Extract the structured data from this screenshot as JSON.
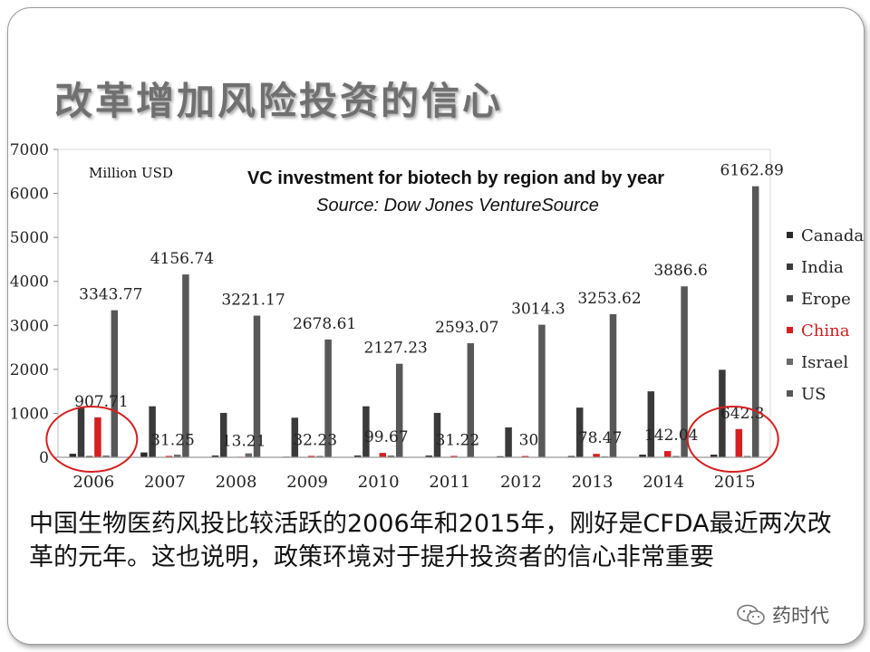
{
  "slide": {
    "title": "改革增加风险投资的信心",
    "caption": "中国生物医药风投比较活跃的2006年和2015年，刚好是CFDA最近两次改革的元年。这也说明，政策环境对于提升投资者的信心非常重要",
    "watermark": "药时代"
  },
  "chart_data": {
    "type": "bar",
    "title": "VC investment for biotech by region and by year",
    "subtitle": "Source: Dow Jones VentureSource",
    "unit_label": "Million USD",
    "ylim": [
      0,
      7000
    ],
    "yticks": [
      0,
      1000,
      2000,
      3000,
      4000,
      5000,
      6000,
      7000
    ],
    "ytick_labels": [
      "0",
      "1000",
      "2000",
      "3000",
      "4000",
      "5000",
      "6000",
      "7000"
    ],
    "categories": [
      "2006",
      "2007",
      "2008",
      "2009",
      "2010",
      "2011",
      "2012",
      "2013",
      "2014",
      "2015"
    ],
    "legend_position": "right",
    "grid": false,
    "series": [
      {
        "name": "Canada",
        "color": "#2b2b2b",
        "values": [
          80,
          110,
          40,
          15,
          40,
          40,
          25,
          30,
          60,
          60
        ]
      },
      {
        "name": "India",
        "color": "#3a3a3a",
        "values": [
          1120,
          1160,
          1010,
          900,
          1160,
          1010,
          680,
          1130,
          1500,
          1990
        ]
      },
      {
        "name": "Erope",
        "color": "#454545",
        "values": [
          30,
          10,
          10,
          10,
          10,
          10,
          10,
          10,
          10,
          10
        ]
      },
      {
        "name": "China",
        "color": "#d42020",
        "values": [
          907.71,
          31.25,
          13.21,
          32.23,
          99.67,
          31.22,
          30,
          78.47,
          142.04,
          642.3
        ]
      },
      {
        "name": "Israel",
        "color": "#6a6a6a",
        "values": [
          40,
          60,
          90,
          30,
          40,
          10,
          10,
          20,
          30,
          30
        ]
      },
      {
        "name": "US",
        "color": "#585858",
        "values": [
          3343.77,
          4156.74,
          3221.17,
          2678.61,
          2127.23,
          2593.07,
          3014.3,
          3253.62,
          3886.6,
          6162.89
        ]
      }
    ],
    "data_labels": {
      "US": [
        "3343.77",
        "4156.74",
        "3221.17",
        "2678.61",
        "2127.23",
        "2593.07",
        "3014.3",
        "3253.62",
        "3886.6",
        "6162.89"
      ],
      "China": [
        "907.71",
        "31.25",
        "13.21",
        "32.23",
        "99.67",
        "31.22",
        "30",
        "78.47",
        "142.04",
        "642.3"
      ]
    },
    "highlighted_categories": [
      "2006",
      "2015"
    ]
  }
}
